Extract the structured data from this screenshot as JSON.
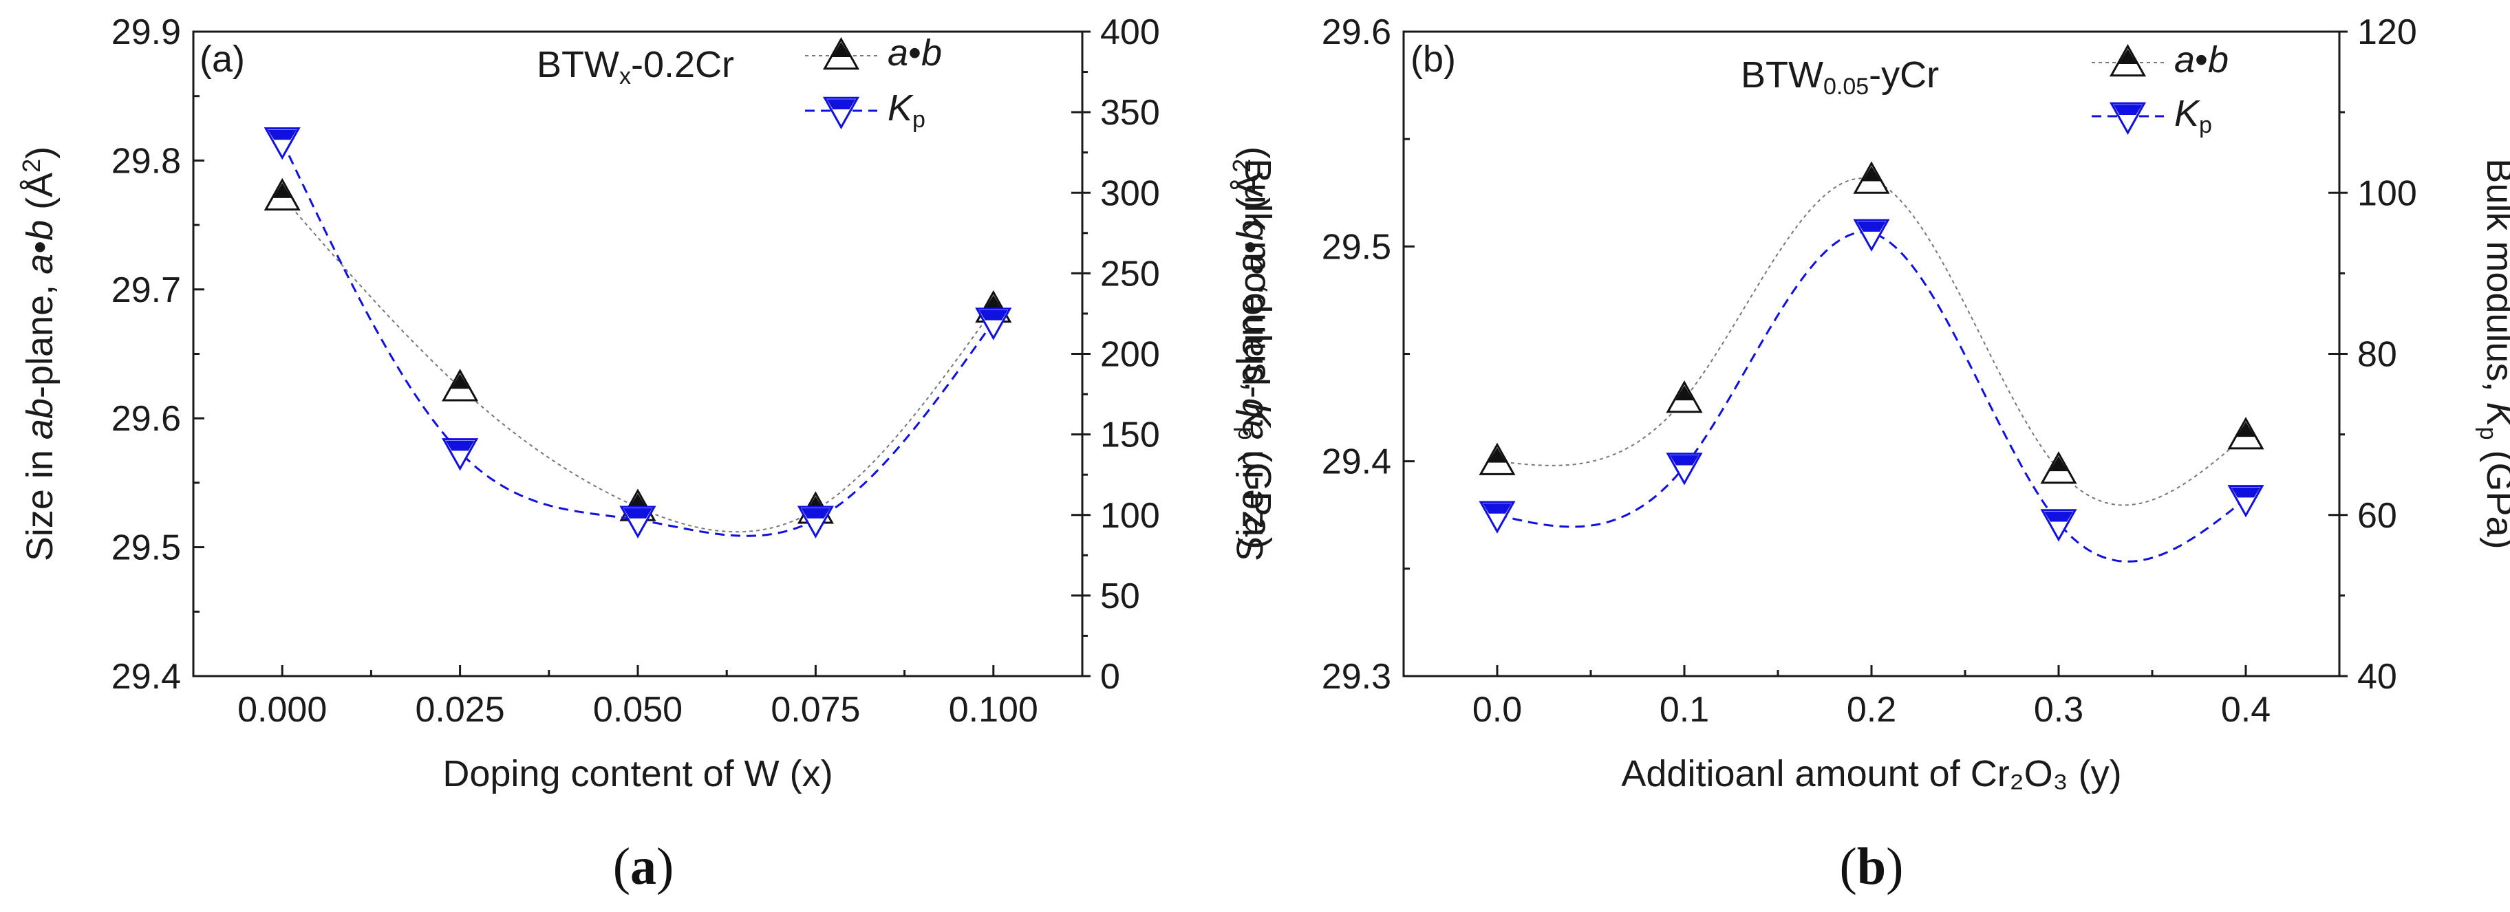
{
  "colors": {
    "ab": "#111111",
    "kp": "#1010e0",
    "axis": "#1a1a1a"
  },
  "chart_data": [
    {
      "type": "line",
      "panel_tag": "(a)",
      "caption": {
        "open": "(",
        "letter": "a",
        "close": ")"
      },
      "annotation": {
        "base": "BTW",
        "sub": "x",
        "rest": "-0.2Cr"
      },
      "xlabel": "Doping content of W (x)",
      "ylabel_left": {
        "pre": "Size in ",
        "ital": "ab",
        "mid": "-plane, ",
        "ital2": "a",
        "dot": "•",
        "ital3": "b",
        "unit": " (Å",
        "sup": "2",
        "end": ")"
      },
      "ylabel_right": {
        "pre": "Bulk modulus, ",
        "ital": "K",
        "sub": "p",
        "end": " (GPa)"
      },
      "x": [
        0.0,
        0.025,
        0.05,
        0.075,
        0.1
      ],
      "xticks": [
        "0.000",
        "0.025",
        "0.050",
        "0.075",
        "0.100"
      ],
      "xlim": [
        -0.0125,
        0.1125
      ],
      "yticks_left": [
        "29.4",
        "29.5",
        "29.6",
        "29.7",
        "29.8",
        "29.9"
      ],
      "ylim_left": [
        29.4,
        29.9
      ],
      "yticks_right": [
        "0",
        "50",
        "100",
        "150",
        "200",
        "250",
        "300",
        "350",
        "400"
      ],
      "ylim_right": [
        0,
        400
      ],
      "series": [
        {
          "name": "a•b",
          "axis": "left",
          "marker": "triangle-up",
          "values": [
            29.772,
            29.624,
            29.531,
            29.529,
            29.685
          ]
        },
        {
          "name": "Kp",
          "axis": "right",
          "marker": "triangle-down",
          "values": [
            332,
            139,
            97,
            97,
            220
          ]
        }
      ],
      "legend": [
        {
          "ital": "a",
          "dot": "•",
          "ital2": "b",
          "sub": ""
        },
        {
          "ital": "K",
          "dot": "",
          "ital2": "",
          "sub": "p"
        }
      ],
      "legend_position": "top-right"
    },
    {
      "type": "line",
      "panel_tag": "(b)",
      "caption": {
        "open": "(",
        "letter": "b",
        "close": ")"
      },
      "annotation": {
        "base": "BTW",
        "sub": "0.05",
        "rest": "-yCr"
      },
      "xlabel": "Additioanl amount of Cr₂O₃ (y)",
      "ylabel_left": {
        "pre": "Size in ",
        "ital": "ab",
        "mid": "-plane, ",
        "ital2": "a",
        "dot": "•",
        "ital3": "b",
        "unit": " (Å",
        "sup": "2",
        "end": ")"
      },
      "ylabel_right": {
        "pre": "Bulk modulus, ",
        "ital": "K",
        "sub": "p",
        "end": " (GPa)"
      },
      "x": [
        0.0,
        0.1,
        0.2,
        0.3,
        0.4
      ],
      "xticks": [
        "0.0",
        "0.1",
        "0.2",
        "0.3",
        "0.4"
      ],
      "xlim": [
        -0.05,
        0.45
      ],
      "yticks_left": [
        "29.3",
        "29.4",
        "29.5",
        "29.6"
      ],
      "ylim_left": [
        29.3,
        29.6
      ],
      "yticks_right": [
        "40",
        "60",
        "80",
        "100",
        "120"
      ],
      "ylim_right": [
        40,
        120
      ],
      "series": [
        {
          "name": "a•b",
          "axis": "left",
          "marker": "triangle-up",
          "values": [
            29.4,
            29.429,
            29.531,
            29.396,
            29.412
          ]
        },
        {
          "name": "Kp",
          "axis": "right",
          "marker": "triangle-down",
          "values": [
            60,
            66,
            95,
            59,
            62
          ]
        }
      ],
      "legend": [
        {
          "ital": "a",
          "dot": "•",
          "ital2": "b",
          "sub": ""
        },
        {
          "ital": "K",
          "dot": "",
          "ital2": "",
          "sub": "p"
        }
      ],
      "legend_position": "top-right"
    }
  ]
}
